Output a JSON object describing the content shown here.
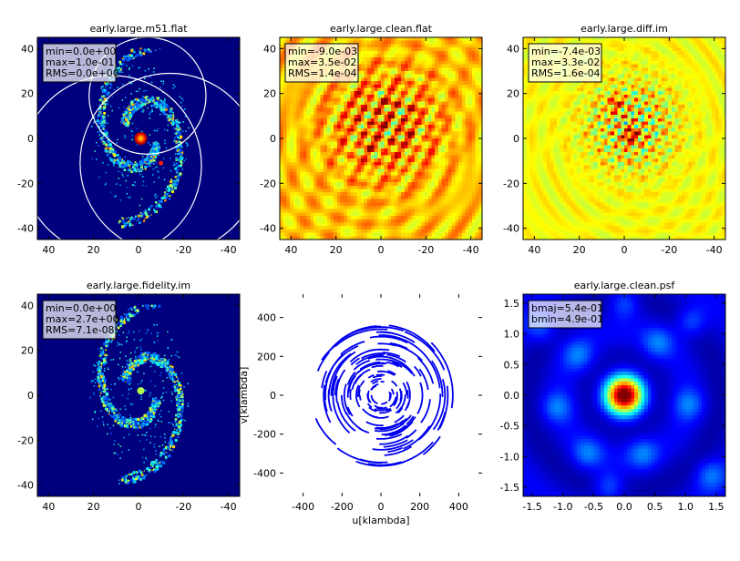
{
  "chart_data": [
    {
      "type": "heatmap",
      "title": "early.large.m51.flat",
      "xlim": [
        45,
        -45
      ],
      "ylim": [
        -45,
        45
      ],
      "xticks": [
        40,
        20,
        0,
        -20,
        -40
      ],
      "yticks": [
        40,
        20,
        0,
        -20,
        -40
      ],
      "stats": [
        "min=0.0e+00",
        "max=1.0e-01",
        "RMS=0.0e+00"
      ],
      "colormap": "jet",
      "pattern": "spiral-galaxy",
      "circles": [
        {
          "cx": -4,
          "cy": 19,
          "r": 26
        },
        {
          "cx": 12,
          "cy": -12,
          "r": 40
        },
        {
          "cx": -14,
          "cy": -11,
          "r": 40
        }
      ]
    },
    {
      "type": "heatmap",
      "title": "early.large.clean.flat",
      "xlim": [
        45,
        -45
      ],
      "ylim": [
        -45,
        45
      ],
      "xticks": [
        40,
        20,
        0,
        -20,
        -40
      ],
      "yticks": [
        40,
        20,
        0,
        -20,
        -40
      ],
      "stats": [
        "min=-9.0e-03",
        "max=3.5e-02",
        "RMS=1.4e-04"
      ],
      "colormap": "jet",
      "pattern": "clean-flat"
    },
    {
      "type": "heatmap",
      "title": "early.large.diff.im",
      "xlim": [
        45,
        -45
      ],
      "ylim": [
        -45,
        45
      ],
      "xticks": [
        40,
        20,
        0,
        -20,
        -40
      ],
      "yticks": [
        40,
        20,
        0,
        -20,
        -40
      ],
      "stats": [
        "min=-7.4e-03",
        "max=3.3e-02",
        "RMS=1.6e-04"
      ],
      "colormap": "jet",
      "pattern": "diff"
    },
    {
      "type": "heatmap",
      "title": "early.large.fidelity.im",
      "xlim": [
        45,
        -45
      ],
      "ylim": [
        -45,
        45
      ],
      "xticks": [
        40,
        20,
        0,
        -20,
        -40
      ],
      "yticks": [
        40,
        20,
        0,
        -20,
        -40
      ],
      "stats": [
        "min=0.0e+00",
        "max=2.7e+00",
        "RMS=7.1e-08"
      ],
      "colormap": "jet",
      "pattern": "fidelity"
    },
    {
      "type": "scatter",
      "title": "",
      "xlabel": "u[klambda]",
      "ylabel": "v[klambda]",
      "xlim": [
        -520,
        520
      ],
      "ylim": [
        -520,
        520
      ],
      "xticks": [
        -400,
        -200,
        0,
        200,
        400
      ],
      "yticks": [
        400,
        200,
        0,
        -200,
        -400
      ],
      "color": "#0000ee",
      "pattern": "uv-coverage"
    },
    {
      "type": "heatmap",
      "title": "early.large.clean.psf",
      "xlim": [
        -1.65,
        1.65
      ],
      "ylim": [
        -1.65,
        1.65
      ],
      "xticks": [
        -1.5,
        -1.0,
        -0.5,
        0.0,
        0.5,
        1.0,
        1.5
      ],
      "xtick_labels": [
        "-1.5",
        "-1.0",
        "-0.5",
        "0.0",
        "0.5",
        "1.0",
        "1.5"
      ],
      "yticks": [
        1.5,
        1.0,
        0.5,
        0.0,
        -0.5,
        -1.0,
        -1.5
      ],
      "ytick_labels": [
        "1.5",
        "1.0",
        "0.5",
        "0.0",
        "-0.5",
        "-1.0",
        "-1.5"
      ],
      "stats": [
        "bmaj=5.4e-01",
        "bmin=4.9e-01"
      ],
      "colormap": "jet",
      "pattern": "psf"
    }
  ]
}
